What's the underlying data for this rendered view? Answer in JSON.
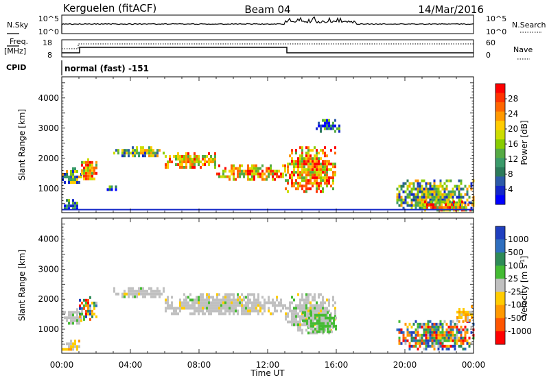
{
  "header": {
    "radar": "Kerguelen (fitACF)",
    "beam": "Beam 04",
    "date": "14/Mar/2016"
  },
  "panels": {
    "nsky": {
      "left_label": "N.Sky",
      "right_label": "N.Search",
      "left_ticks": [
        "10^5",
        "10^0"
      ],
      "right_ticks": [
        "10^5",
        "10^0"
      ]
    },
    "freq": {
      "left_label_1": "Freq.",
      "left_label_2": "[MHz]",
      "right_label": "Nave",
      "left_ticks": [
        "18",
        "8"
      ],
      "right_ticks": [
        "60",
        "0"
      ]
    },
    "cpid": {
      "label": "CPID",
      "mode": "normal (fast) -151"
    }
  },
  "colorbar_power": {
    "label": "Power [dB]",
    "ticks": [
      "28",
      "24",
      "20",
      "16",
      "12",
      "8",
      "4"
    ],
    "colors": [
      "#ff0000",
      "#ff3300",
      "#ff6600",
      "#ff9900",
      "#ffcc00",
      "#ccdd00",
      "#88cc00",
      "#55aa44",
      "#3a9a6a",
      "#2b7a5a",
      "#2c5aa8",
      "#1428c8",
      "#0000ff"
    ]
  },
  "colorbar_velocity": {
    "label": "Velocity [m s",
    "label_sup": "-1",
    "label_end": "]",
    "ticks": [
      "1000",
      "500",
      "100",
      "25",
      "-25",
      "-100",
      "-500",
      "-1000"
    ],
    "colors": [
      "#1f3fbf",
      "#2f6fbf",
      "#2e8b57",
      "#44bb33",
      "#c0c0c0",
      "#ffcc00",
      "#ff9900",
      "#ff5500",
      "#ff0000"
    ]
  },
  "chart_data": [
    {
      "type": "heatmap",
      "title": "",
      "xlabel": "Time UT",
      "ylabel": "Slant Range [km]",
      "x_ticks": [
        "00:00",
        "04:00",
        "08:00",
        "12:00",
        "16:00",
        "20:00",
        "00:00"
      ],
      "xlim_hours": [
        0,
        24
      ],
      "ylim": [
        200,
        4700
      ],
      "y_ticks": [
        1000,
        2000,
        3000,
        4000
      ],
      "parameter": "Power [dB]",
      "echo_regions": [
        {
          "t0": 0.0,
          "t1": 1.0,
          "r0": 300,
          "r1": 650,
          "level": "low"
        },
        {
          "t0": 0.0,
          "t1": 1.1,
          "r0": 1200,
          "r1": 1700,
          "level": "mid"
        },
        {
          "t0": 1.0,
          "t1": 2.0,
          "r0": 1300,
          "r1": 2000,
          "level": "high"
        },
        {
          "t0": 2.5,
          "t1": 3.2,
          "r0": 950,
          "r1": 1100,
          "level": "low"
        },
        {
          "t0": 3.0,
          "t1": 6.0,
          "r0": 2100,
          "r1": 2400,
          "level": "mid"
        },
        {
          "t0": 6.0,
          "t1": 9.0,
          "r0": 1700,
          "r1": 2200,
          "level": "high"
        },
        {
          "t0": 9.0,
          "t1": 13.0,
          "r0": 1300,
          "r1": 1800,
          "level": "high"
        },
        {
          "t0": 13.0,
          "t1": 16.0,
          "r0": 900,
          "r1": 2400,
          "level": "high"
        },
        {
          "t0": 14.8,
          "t1": 16.2,
          "r0": 2900,
          "r1": 3300,
          "level": "low"
        },
        {
          "t0": 19.5,
          "t1": 24.0,
          "r0": 300,
          "r1": 1300,
          "level": "mid"
        },
        {
          "t0": 21.0,
          "t1": 24.0,
          "r0": 300,
          "r1": 600,
          "level": "high"
        }
      ]
    },
    {
      "type": "heatmap",
      "title": "",
      "xlabel": "Time UT",
      "ylabel": "Slant Range [km]",
      "x_ticks": [
        "00:00",
        "04:00",
        "08:00",
        "12:00",
        "16:00",
        "20:00",
        "00:00"
      ],
      "xlim_hours": [
        0,
        24
      ],
      "ylim": [
        200,
        4700
      ],
      "y_ticks": [
        1000,
        2000,
        3000,
        4000
      ],
      "parameter": "Velocity [m s-1]",
      "echo_regions": [
        {
          "t0": 0.0,
          "t1": 1.0,
          "r0": 300,
          "r1": 650,
          "level": "neg"
        },
        {
          "t0": 0.0,
          "t1": 1.1,
          "r0": 1200,
          "r1": 1700,
          "level": "zero"
        },
        {
          "t0": 1.0,
          "t1": 2.0,
          "r0": 1300,
          "r1": 2100,
          "level": "mixed"
        },
        {
          "t0": 3.0,
          "t1": 6.0,
          "r0": 2100,
          "r1": 2400,
          "level": "zero"
        },
        {
          "t0": 6.0,
          "t1": 13.0,
          "r0": 1500,
          "r1": 2200,
          "level": "zero"
        },
        {
          "t0": 13.0,
          "t1": 16.0,
          "r0": 900,
          "r1": 2200,
          "level": "zero"
        },
        {
          "t0": 14.0,
          "t1": 16.0,
          "r0": 950,
          "r1": 1600,
          "level": "pos"
        },
        {
          "t0": 19.5,
          "t1": 24.0,
          "r0": 300,
          "r1": 1300,
          "level": "mixed"
        },
        {
          "t0": 23.0,
          "t1": 24.0,
          "r0": 1300,
          "r1": 1800,
          "level": "neg"
        }
      ]
    }
  ]
}
